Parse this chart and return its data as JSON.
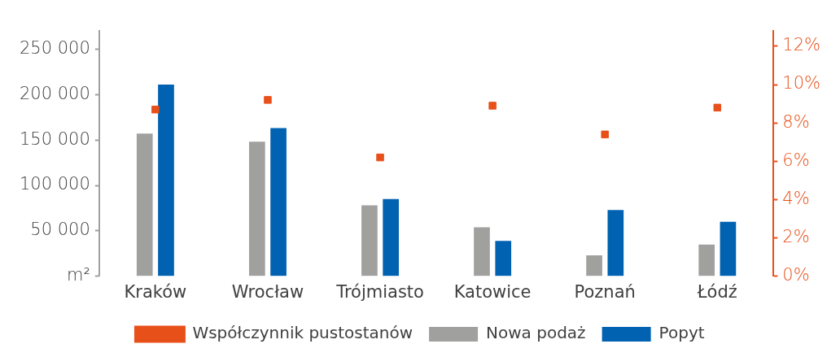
{
  "chart_data": {
    "type": "bar",
    "categories": [
      "Kraków",
      "Wrocław",
      "Trójmiasto",
      "Katowice",
      "Poznań",
      "Łódź"
    ],
    "series": [
      {
        "name": "Nowa podaż",
        "color": "#a0a09f",
        "values": [
          157000,
          148000,
          78000,
          54000,
          23000,
          35000
        ]
      },
      {
        "name": "Popyt",
        "color": "#0062b1",
        "values": [
          211000,
          163000,
          85000,
          39000,
          73000,
          60000
        ]
      },
      {
        "name": "Współczynnik pustostanów",
        "type": "scatter",
        "axis": "y2",
        "color": "#e8501a",
        "x": [
          "Kraków",
          "Wrocław",
          "Trójmiasto",
          "Katowice",
          "Poznań",
          "Łódź"
        ],
        "values": [
          8.7,
          9.2,
          6.2,
          8.9,
          7.4,
          8.8
        ]
      }
    ],
    "ylim": [
      0,
      270000
    ],
    "yticks": [
      {
        "value": 0,
        "label": "m²"
      },
      {
        "value": 50000,
        "label": "50 000"
      },
      {
        "value": 100000,
        "label": "100 000"
      },
      {
        "value": 150000,
        "label": "150 000"
      },
      {
        "value": 200000,
        "label": "200 000"
      },
      {
        "value": 250000,
        "label": "250 000"
      }
    ],
    "y2lim": [
      0,
      12.8
    ],
    "y2ticks": [
      {
        "value": 0,
        "label": "0%"
      },
      {
        "value": 2,
        "label": "2%"
      },
      {
        "value": 4,
        "label": "4%"
      },
      {
        "value": 6,
        "label": "6%"
      },
      {
        "value": 8,
        "label": "8%"
      },
      {
        "value": 10,
        "label": "10%"
      },
      {
        "value": 12,
        "label": "12%"
      }
    ],
    "grid": false,
    "legend": "bottom",
    "marker": "square"
  }
}
